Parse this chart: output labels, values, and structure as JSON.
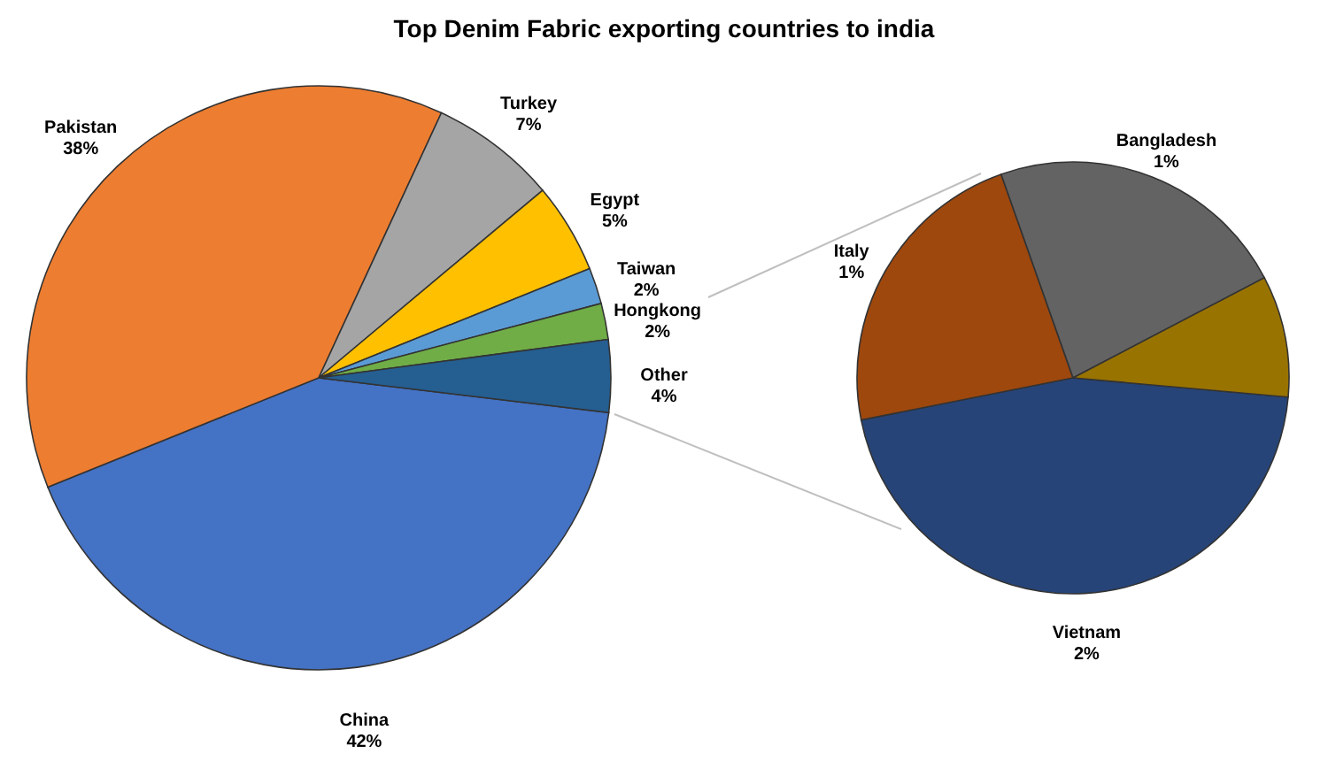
{
  "chart_data": [
    {
      "type": "pie",
      "title": "Top Denim Fabric exporting countries to india",
      "categories": [
        "China",
        "Pakistan",
        "Turkey",
        "Egypt",
        "Taiwan",
        "Hongkong",
        "Other"
      ],
      "values": [
        42,
        38,
        7,
        5,
        2,
        2,
        4
      ],
      "value_labels": [
        "42%",
        "38%",
        "7%",
        "5%",
        "2%",
        "2%",
        "4%"
      ],
      "colors": [
        "#4472c4",
        "#ed7d31",
        "#a5a5a5",
        "#ffc000",
        "#5b9bd5",
        "#70ad47",
        "#255e91"
      ]
    },
    {
      "type": "pie",
      "categories": [
        "Vietnam",
        "Italy",
        "Bangladesh",
        null
      ],
      "values": [
        2,
        1,
        1,
        0.4
      ],
      "value_labels": [
        "2%",
        "1%",
        "1%",
        null
      ],
      "colors": [
        "#264478",
        "#9e480e",
        "#636363",
        "#997300"
      ]
    }
  ]
}
